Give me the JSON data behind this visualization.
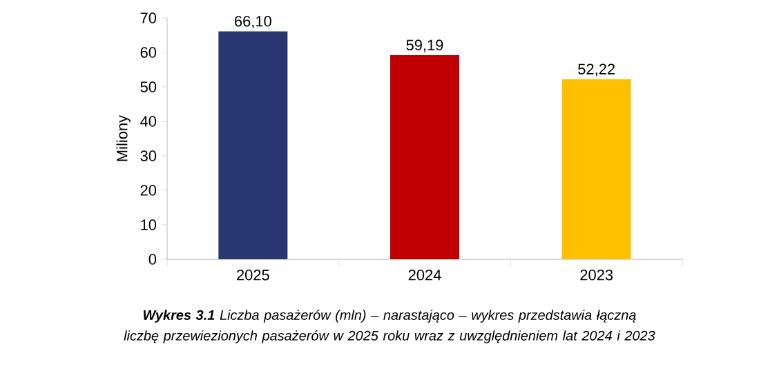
{
  "chart_data": {
    "type": "bar",
    "ylabel": "Miliony",
    "categories": [
      "2025",
      "2024",
      "2023"
    ],
    "values": [
      66.1,
      59.19,
      52.22
    ],
    "colors": [
      "#283770",
      "#c00000",
      "#ffc000"
    ],
    "value_labels": [
      "66,10",
      "59,19",
      "52,22"
    ],
    "ylim": [
      0,
      70
    ],
    "yticks": [
      0,
      10,
      20,
      30,
      40,
      50,
      60,
      70
    ],
    "annotations": [
      "**Wykres 3.1** Liczba pasażerów (mln) – narastająco – wykres przedstawia łączną liczbę przewiezionych pasażerów w 2025 roku wraz z uwzględnieniem lat 2024 i 2023"
    ]
  }
}
